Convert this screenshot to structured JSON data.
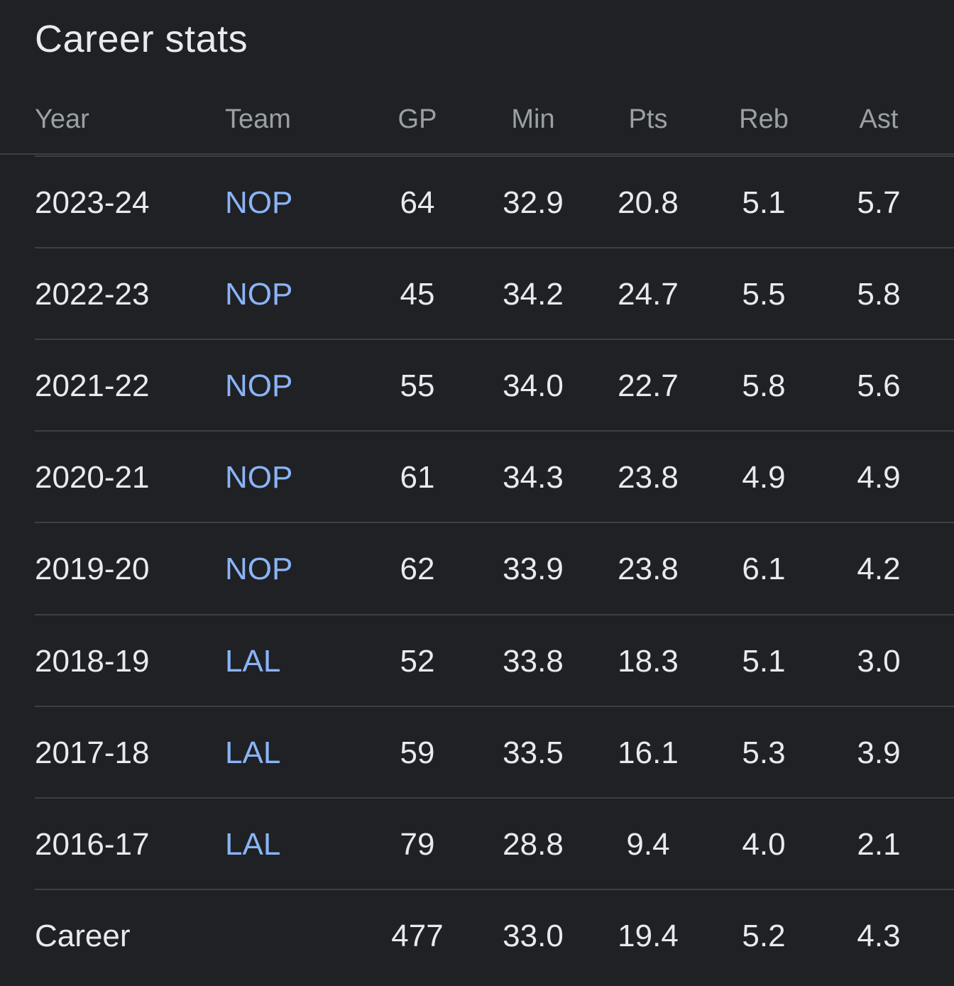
{
  "title": "Career stats",
  "headers": {
    "year": "Year",
    "team": "Team",
    "gp": "GP",
    "min": "Min",
    "pts": "Pts",
    "reb": "Reb",
    "ast": "Ast"
  },
  "rows": [
    {
      "year": "2023-24",
      "team": "NOP",
      "gp": "64",
      "min": "32.9",
      "pts": "20.8",
      "reb": "5.1",
      "ast": "5.7"
    },
    {
      "year": "2022-23",
      "team": "NOP",
      "gp": "45",
      "min": "34.2",
      "pts": "24.7",
      "reb": "5.5",
      "ast": "5.8"
    },
    {
      "year": "2021-22",
      "team": "NOP",
      "gp": "55",
      "min": "34.0",
      "pts": "22.7",
      "reb": "5.8",
      "ast": "5.6"
    },
    {
      "year": "2020-21",
      "team": "NOP",
      "gp": "61",
      "min": "34.3",
      "pts": "23.8",
      "reb": "4.9",
      "ast": "4.9"
    },
    {
      "year": "2019-20",
      "team": "NOP",
      "gp": "62",
      "min": "33.9",
      "pts": "23.8",
      "reb": "6.1",
      "ast": "4.2"
    },
    {
      "year": "2018-19",
      "team": "LAL",
      "gp": "52",
      "min": "33.8",
      "pts": "18.3",
      "reb": "5.1",
      "ast": "3.0"
    },
    {
      "year": "2017-18",
      "team": "LAL",
      "gp": "59",
      "min": "33.5",
      "pts": "16.1",
      "reb": "5.3",
      "ast": "3.9"
    },
    {
      "year": "2016-17",
      "team": "LAL",
      "gp": "79",
      "min": "28.8",
      "pts": "9.4",
      "reb": "4.0",
      "ast": "2.1"
    }
  ],
  "career": {
    "year": "Career",
    "team": "",
    "gp": "477",
    "min": "33.0",
    "pts": "19.4",
    "reb": "5.2",
    "ast": "4.3"
  },
  "colors": {
    "background": "#202124",
    "text": "#e8eaed",
    "muted": "#9aa0a6",
    "link": "#8ab4f8",
    "divider": "#3c4043"
  }
}
